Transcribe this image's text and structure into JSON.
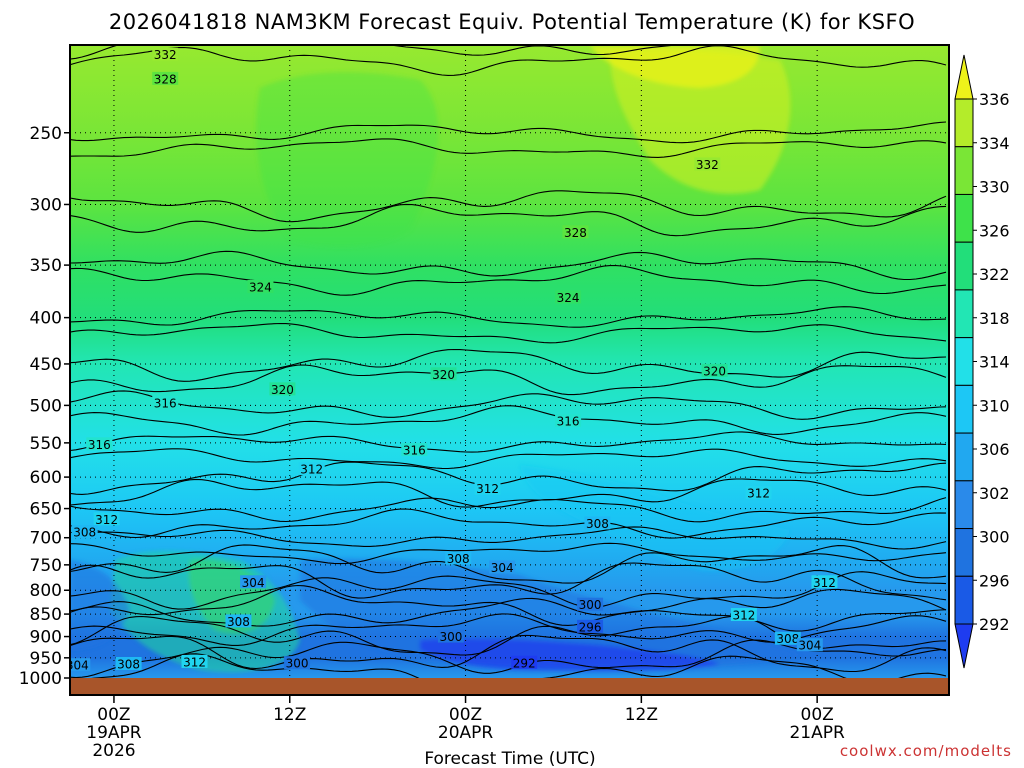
{
  "chart_data": {
    "type": "heatmap",
    "title": "2026041818 NAM3KM Forecast Equiv. Potential Temperature (K) for KSFO",
    "xlabel": "Forecast Time (UTC)",
    "ylabel": "",
    "y_scale": "log",
    "y_inverted": true,
    "ylim": [
      1000,
      200
    ],
    "y_ticks": [
      250,
      300,
      350,
      400,
      450,
      500,
      550,
      600,
      650,
      700,
      750,
      800,
      850,
      900,
      950,
      1000
    ],
    "x_range_hours": [
      -3,
      57
    ],
    "x_ticks": [
      {
        "hour": 0,
        "line1": "00Z",
        "line2": "19APR",
        "line3": "2026"
      },
      {
        "hour": 12,
        "line1": "12Z",
        "line2": "",
        "line3": ""
      },
      {
        "hour": 24,
        "line1": "00Z",
        "line2": "20APR",
        "line3": ""
      },
      {
        "hour": 36,
        "line1": "12Z",
        "line2": "",
        "line3": ""
      },
      {
        "hour": 48,
        "line1": "00Z",
        "line2": "21APR",
        "line3": ""
      }
    ],
    "grid": true,
    "colorbar": {
      "labels": [
        292,
        296,
        300,
        302,
        306,
        310,
        314,
        318,
        322,
        326,
        330,
        334,
        336
      ],
      "colors": [
        "#1e3cf0",
        "#1a5ae6",
        "#1f73e0",
        "#2a8aea",
        "#21a8f0",
        "#1dc7f5",
        "#22e0e8",
        "#22e6b4",
        "#22de7a",
        "#3ee24a",
        "#7ae636",
        "#b4ec2a",
        "#eef21a"
      ]
    },
    "levels": [
      1000,
      950,
      900,
      850,
      800,
      750,
      700,
      650,
      600,
      550,
      500,
      450,
      400,
      350,
      300,
      250,
      200
    ],
    "theta_e_profile": [
      304,
      300,
      300,
      304,
      304,
      306,
      308,
      310,
      312,
      314,
      316,
      318,
      322,
      324,
      328,
      330,
      332
    ],
    "contour_labels": [
      {
        "text": "332",
        "hour": 3.5,
        "p": 205
      },
      {
        "text": "328",
        "hour": 3.5,
        "p": 218
      },
      {
        "text": "332",
        "hour": 40.5,
        "p": 271
      },
      {
        "text": "328",
        "hour": 31.5,
        "p": 322
      },
      {
        "text": "324",
        "hour": 10.0,
        "p": 370
      },
      {
        "text": "324",
        "hour": 31.0,
        "p": 380
      },
      {
        "text": "320",
        "hour": 22.5,
        "p": 462
      },
      {
        "text": "320",
        "hour": 41.0,
        "p": 458
      },
      {
        "text": "320",
        "hour": 11.5,
        "p": 480
      },
      {
        "text": "316",
        "hour": 3.5,
        "p": 497
      },
      {
        "text": "316",
        "hour": 31.0,
        "p": 520
      },
      {
        "text": "316",
        "hour": -1.0,
        "p": 552
      },
      {
        "text": "316",
        "hour": 20.5,
        "p": 560
      },
      {
        "text": "312",
        "hour": 13.5,
        "p": 588
      },
      {
        "text": "312",
        "hour": 25.5,
        "p": 618
      },
      {
        "text": "312",
        "hour": 44.0,
        "p": 625
      },
      {
        "text": "312",
        "hour": -0.5,
        "p": 668
      },
      {
        "text": "308",
        "hour": -2.0,
        "p": 690
      },
      {
        "text": "308",
        "hour": 33.0,
        "p": 675
      },
      {
        "text": "308",
        "hour": 23.5,
        "p": 738
      },
      {
        "text": "304",
        "hour": 26.5,
        "p": 755
      },
      {
        "text": "304",
        "hour": 9.5,
        "p": 784
      },
      {
        "text": "312",
        "hour": 48.5,
        "p": 784
      },
      {
        "text": "300",
        "hour": 32.5,
        "p": 830
      },
      {
        "text": "312",
        "hour": 43.0,
        "p": 852
      },
      {
        "text": "308",
        "hour": 8.5,
        "p": 866
      },
      {
        "text": "296",
        "hour": 32.5,
        "p": 878
      },
      {
        "text": "300",
        "hour": 23.0,
        "p": 900
      },
      {
        "text": "308",
        "hour": 46.0,
        "p": 905
      },
      {
        "text": "304",
        "hour": 47.5,
        "p": 920
      },
      {
        "text": "312",
        "hour": 5.5,
        "p": 960
      },
      {
        "text": "308",
        "hour": 1.0,
        "p": 965
      },
      {
        "text": "300",
        "hour": 12.5,
        "p": 963
      },
      {
        "text": "304",
        "hour": -2.5,
        "p": 968
      },
      {
        "text": "292",
        "hour": 28.0,
        "p": 962
      }
    ]
  },
  "credit": "coolwx.com/modelts"
}
